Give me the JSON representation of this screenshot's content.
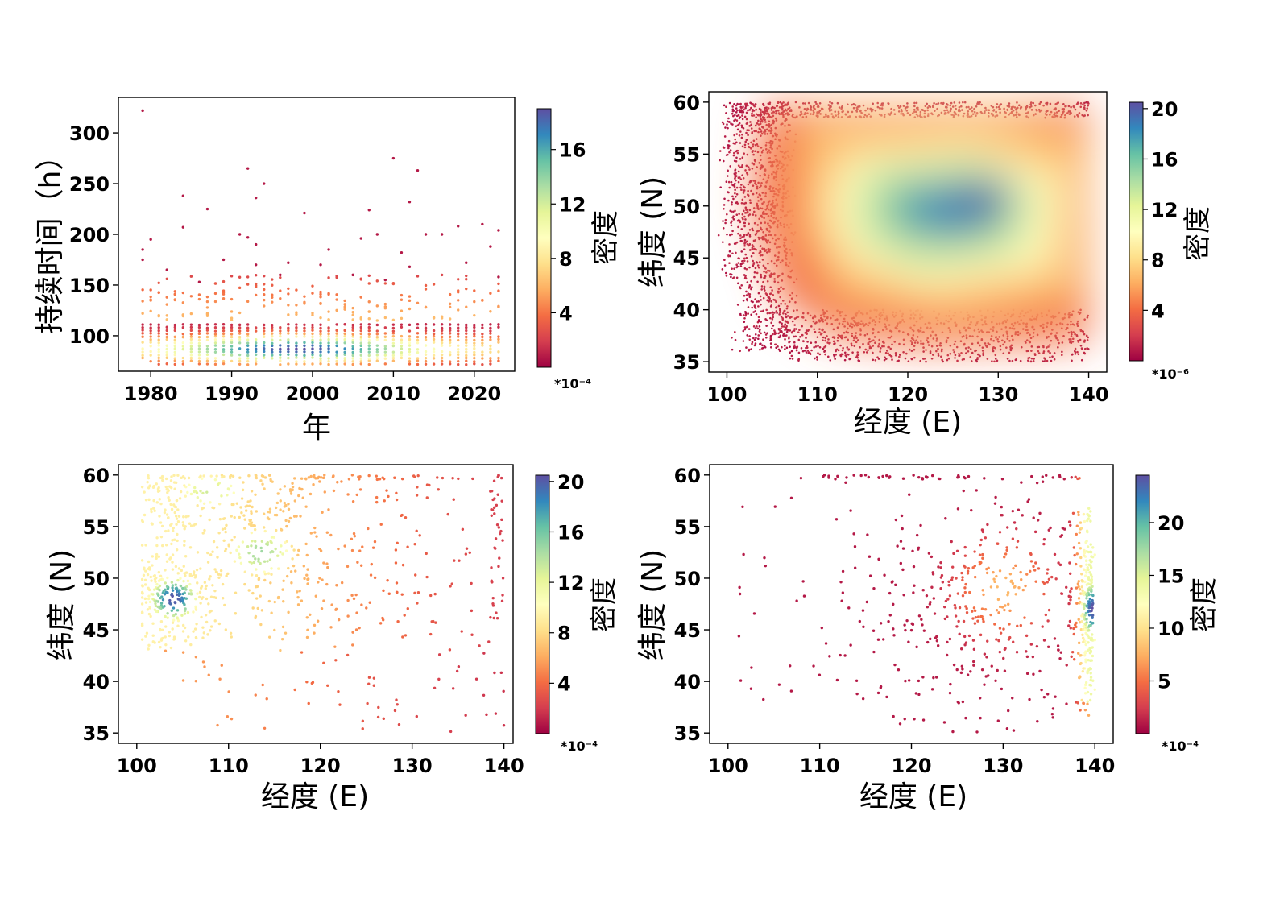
{
  "colors": {
    "colormap": "Spectral",
    "stops": [
      "#9e0142",
      "#d53e4f",
      "#f46d43",
      "#fdae61",
      "#fee08b",
      "#ffffbf",
      "#e6f598",
      "#abdda4",
      "#66c2a5",
      "#3288bd",
      "#5e4fa2"
    ],
    "frame": "#000000"
  },
  "chart_data": [
    {
      "type": "scatter",
      "xlabel": "年",
      "ylabel": "持续时间（h）",
      "xlim": [
        1976,
        2025
      ],
      "ylim": [
        65,
        335
      ],
      "xticks": [
        1980,
        1990,
        2000,
        2010,
        2020
      ],
      "yticks": [
        100,
        150,
        200,
        250,
        300
      ],
      "colorbar": {
        "label": "密度",
        "ticks": [
          4,
          8,
          12,
          16
        ],
        "range": [
          0,
          19
        ],
        "exponent": "*10⁻⁴"
      },
      "outliers": [
        [
          1979,
          322
        ],
        [
          1980,
          195
        ],
        [
          1979,
          185
        ],
        [
          1979,
          175
        ],
        [
          1982,
          165
        ],
        [
          1984,
          238
        ],
        [
          1984,
          207
        ],
        [
          1987,
          225
        ],
        [
          1989,
          175
        ],
        [
          1991,
          200
        ],
        [
          1992,
          265
        ],
        [
          1992,
          197
        ],
        [
          1993,
          236
        ],
        [
          1993,
          190
        ],
        [
          1994,
          250
        ],
        [
          1993,
          170
        ],
        [
          1997,
          172
        ],
        [
          1999,
          221
        ],
        [
          2001,
          170
        ],
        [
          2002,
          185
        ],
        [
          2005,
          160
        ],
        [
          2006,
          196
        ],
        [
          2007,
          224
        ],
        [
          2008,
          200
        ],
        [
          2009,
          155
        ],
        [
          2010,
          275
        ],
        [
          2011,
          182
        ],
        [
          2012,
          232
        ],
        [
          2013,
          263
        ],
        [
          2014,
          200
        ],
        [
          2016,
          200
        ],
        [
          2018,
          208
        ],
        [
          2019,
          172
        ],
        [
          2021,
          210
        ],
        [
          2022,
          188
        ],
        [
          2023,
          204
        ],
        [
          2023,
          158
        ],
        [
          2012,
          168
        ],
        [
          1996,
          160
        ],
        [
          1986,
          153
        ]
      ]
    },
    {
      "type": "heatmap",
      "xlabel": "经度 (E)",
      "ylabel": "纬度 (N)",
      "xlim": [
        98,
        142
      ],
      "ylim": [
        34,
        61
      ],
      "xticks": [
        100,
        110,
        120,
        130,
        140
      ],
      "yticks": [
        35,
        40,
        45,
        50,
        55,
        60
      ],
      "colorbar": {
        "label": "密度",
        "ticks": [
          4,
          8,
          12,
          16,
          20
        ],
        "range": [
          0,
          20.5
        ],
        "exponent": "*10⁻⁶"
      },
      "density_center": [
        126,
        50.5
      ]
    },
    {
      "type": "scatter",
      "xlabel": "经度 (E)",
      "ylabel": "纬度 (N)",
      "xlim": [
        98,
        141
      ],
      "ylim": [
        34,
        61
      ],
      "xticks": [
        100,
        110,
        120,
        130,
        140
      ],
      "yticks": [
        35,
        40,
        45,
        50,
        55,
        60
      ],
      "colorbar": {
        "label": "密度",
        "ticks": [
          4,
          8,
          12,
          16,
          20
        ],
        "range": [
          0,
          20.5
        ],
        "exponent": "*10⁻⁴"
      },
      "density_center": [
        104,
        48
      ]
    },
    {
      "type": "scatter",
      "xlabel": "经度 (E)",
      "ylabel": "纬度 (N)",
      "xlim": [
        98,
        142
      ],
      "ylim": [
        34,
        61
      ],
      "xticks": [
        100,
        110,
        120,
        130,
        140
      ],
      "yticks": [
        35,
        40,
        45,
        50,
        55,
        60
      ],
      "colorbar": {
        "label": "密度",
        "ticks": [
          5,
          10,
          15,
          20
        ],
        "range": [
          0,
          24.5
        ],
        "exponent": "*10⁻⁴"
      },
      "density_center": [
        139.7,
        47
      ]
    }
  ]
}
